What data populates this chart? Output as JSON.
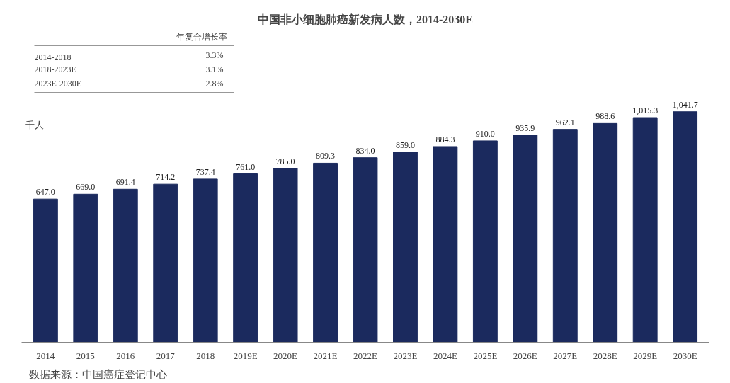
{
  "chart_data": {
    "type": "bar",
    "title": "中国非小细胞肺癌新发病人数，2014-2030E",
    "ylabel": "千人",
    "categories": [
      "2014",
      "2015",
      "2016",
      "2017",
      "2018",
      "2019E",
      "2020E",
      "2021E",
      "2022E",
      "2023E",
      "2024E",
      "2025E",
      "2026E",
      "2027E",
      "2028E",
      "2029E",
      "2030E"
    ],
    "values": [
      647.0,
      669.0,
      691.4,
      714.2,
      737.4,
      761.0,
      785.0,
      809.3,
      834.0,
      859.0,
      884.3,
      910.0,
      935.9,
      962.1,
      988.6,
      1015.3,
      1041.7
    ],
    "value_labels": [
      "647.0",
      "669.0",
      "691.4",
      "714.2",
      "737.4",
      "761.0",
      "785.0",
      "809.3",
      "834.0",
      "859.0",
      "884.3",
      "910.0",
      "935.9",
      "962.1",
      "988.6",
      "1,015.3",
      "1,041.7"
    ],
    "color": "#1b2a5e",
    "grid": false,
    "annotations": [
      "年复合增长率",
      "2014-2018",
      "3.3%",
      "2018-2023E",
      "3.1%",
      "2023E-2030E",
      "2.8%",
      "数据来源：中国癌症登记中心"
    ]
  }
}
